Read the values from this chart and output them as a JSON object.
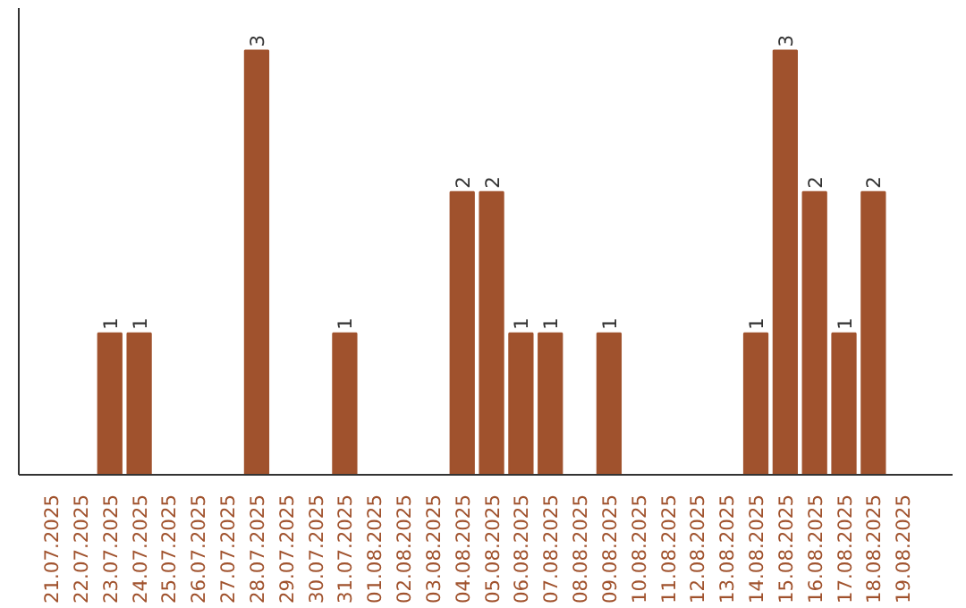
{
  "chart_data": {
    "type": "bar",
    "categories": [
      "21.07.2025",
      "22.07.2025",
      "23.07.2025",
      "24.07.2025",
      "25.07.2025",
      "26.07.2025",
      "27.07.2025",
      "28.07.2025",
      "29.07.2025",
      "30.07.2025",
      "31.07.2025",
      "01.08.2025",
      "02.08.2025",
      "03.08.2025",
      "04.08.2025",
      "05.08.2025",
      "06.08.2025",
      "07.08.2025",
      "08.08.2025",
      "09.08.2025",
      "10.08.2025",
      "11.08.2025",
      "12.08.2025",
      "13.08.2025",
      "14.08.2025",
      "15.08.2025",
      "16.08.2025",
      "17.08.2025",
      "18.08.2025",
      "19.08.2025"
    ],
    "values": [
      0,
      0,
      1,
      1,
      0,
      0,
      0,
      3,
      0,
      0,
      1,
      0,
      0,
      0,
      2,
      2,
      1,
      1,
      0,
      1,
      0,
      0,
      0,
      0,
      1,
      3,
      2,
      1,
      2,
      0
    ],
    "value_labels": [
      null,
      null,
      "1",
      "1",
      null,
      null,
      null,
      "3",
      null,
      null,
      "1",
      null,
      null,
      null,
      "2",
      "2",
      "1",
      "1",
      null,
      "1",
      null,
      null,
      null,
      null,
      "1",
      "3",
      "2",
      "1",
      "2",
      null
    ],
    "color": "#a0522d",
    "grid": false,
    "tick_labels": "x"
  }
}
